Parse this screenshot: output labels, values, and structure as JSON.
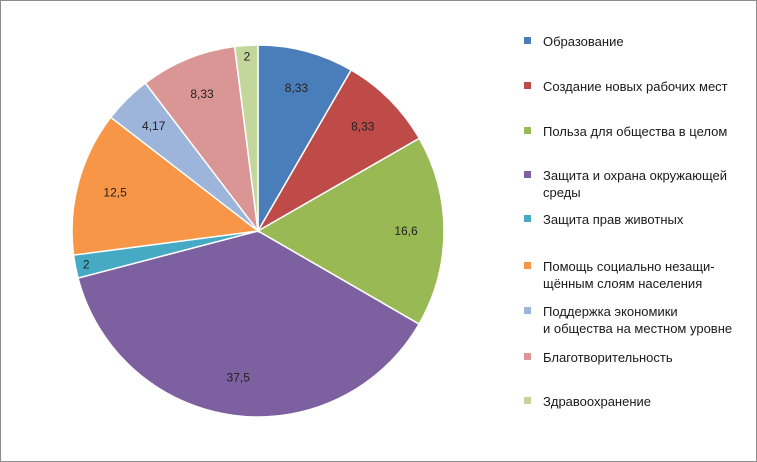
{
  "chart_data": {
    "type": "pie",
    "title": "",
    "start_angle_deg": 0,
    "direction": "clockwise",
    "legend_position": "right",
    "slices": [
      {
        "label": "Образование",
        "value": 8.33,
        "display": "8,33",
        "color": "#4A7EBB"
      },
      {
        "label": "Создание новых рабочих мест",
        "value": 8.33,
        "display": "8,33",
        "color": "#BE4B48"
      },
      {
        "label": "Польза для общества в целом",
        "value": 16.6,
        "display": "16,6",
        "color": "#98B954"
      },
      {
        "label": "Защита и охрана окружающей\nсреды",
        "value": 37.5,
        "display": "37,5",
        "color": "#7D60A0"
      },
      {
        "label": "Защита прав животных",
        "value": 2,
        "display": "2",
        "color": "#46AAC5"
      },
      {
        "label": "Помощь социально незащи-\nщённым слоям населения",
        "value": 12.5,
        "display": "12,5",
        "color": "#F79646"
      },
      {
        "label": "Поддержка экономики\nи общества на местном уровне",
        "value": 4.17,
        "display": "4,17",
        "color": "#9DB5DA"
      },
      {
        "label": "Благотворительность",
        "value": 8.33,
        "display": "8,33",
        "color": "#D99694"
      },
      {
        "label": "Здравоохранение",
        "value": 2,
        "display": "2",
        "color": "#C3D69B"
      }
    ]
  }
}
